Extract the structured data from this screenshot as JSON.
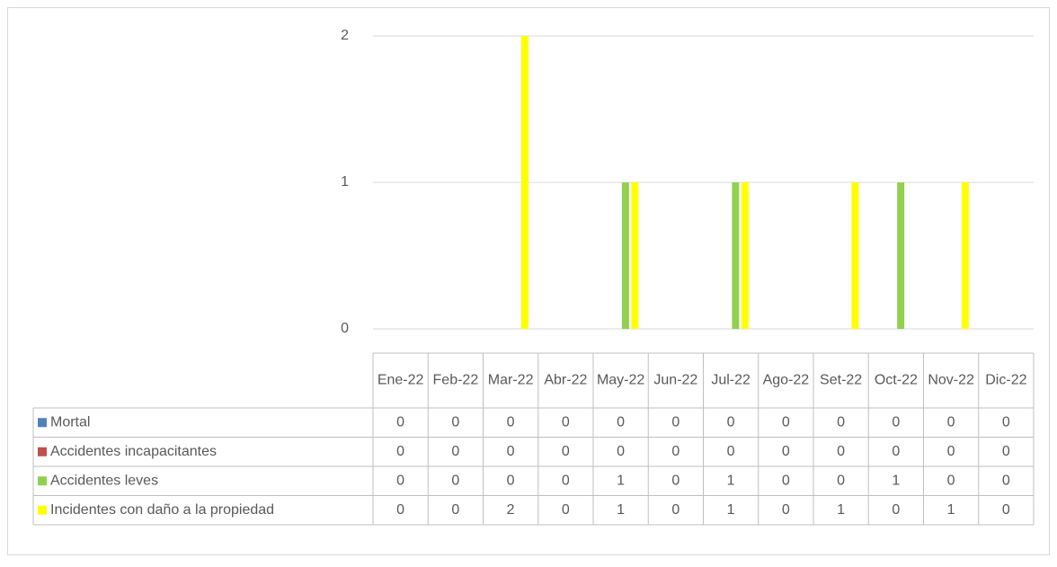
{
  "chart_data": {
    "type": "bar",
    "categories": [
      "Ene-22",
      "Feb-22",
      "Mar-22",
      "Abr-22",
      "May-22",
      "Jun-22",
      "Jul-22",
      "Ago-22",
      "Set-22",
      "Oct-22",
      "Nov-22",
      "Dic-22"
    ],
    "series": [
      {
        "name": "Mortal",
        "color": "#4f81bd",
        "values": [
          0,
          0,
          0,
          0,
          0,
          0,
          0,
          0,
          0,
          0,
          0,
          0
        ]
      },
      {
        "name": "Accidentes incapacitantes",
        "color": "#c0504d",
        "values": [
          0,
          0,
          0,
          0,
          0,
          0,
          0,
          0,
          0,
          0,
          0,
          0
        ]
      },
      {
        "name": "Accidentes leves",
        "color": "#92d050",
        "values": [
          0,
          0,
          0,
          0,
          1,
          0,
          1,
          0,
          0,
          1,
          0,
          0
        ]
      },
      {
        "name": "Incidentes con daño a la propiedad",
        "color": "#ffff00",
        "values": [
          0,
          0,
          2,
          0,
          1,
          0,
          1,
          0,
          1,
          0,
          1,
          0
        ]
      }
    ],
    "ylim": [
      0,
      2
    ],
    "yticks": [
      0,
      1,
      2
    ],
    "grid": true,
    "data_table": true
  }
}
